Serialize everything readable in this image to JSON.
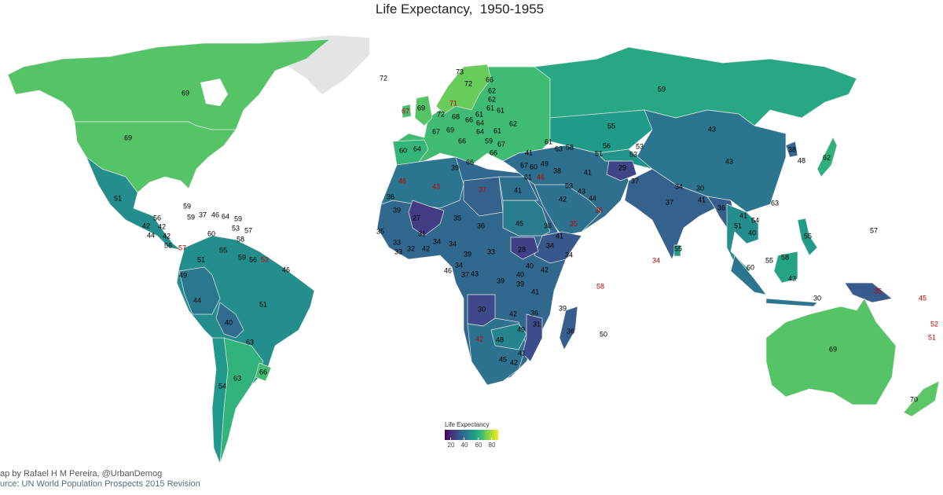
{
  "title": "Life Expectancy,  1950-1955",
  "legend": {
    "title": "Life Expectancy",
    "ticks": [
      "20",
      "40",
      "60",
      "80"
    ],
    "palette": [
      "#440154",
      "#482878",
      "#3e4989",
      "#31688e",
      "#26828e",
      "#1f9e89",
      "#35b779",
      "#6ece58",
      "#b5de2b",
      "#fde725"
    ],
    "range": [
      13,
      90
    ]
  },
  "credits": {
    "line1": "ap by Rafael H M Pereira, @UrbanDemog",
    "line2": "urce: UN World Population Prospects 2015 Revision"
  },
  "region_values": [
    69,
    69,
    51,
    51,
    44,
    40,
    63,
    54,
    66,
    66,
    72,
    69,
    67,
    64,
    59,
    55,
    43,
    53,
    41,
    29,
    42,
    37,
    36,
    51,
    38,
    62,
    55,
    43,
    58,
    43,
    35,
    55,
    69,
    70,
    39,
    43,
    27,
    45,
    41,
    37,
    34,
    28,
    30,
    42,
    48,
    31,
    36
  ],
  "labels": [
    69,
    69,
    72,
    51,
    59,
    59,
    37,
    46,
    64,
    59,
    56,
    42,
    42,
    44,
    42,
    56,
    57,
    60,
    53,
    57,
    58,
    55,
    51,
    59,
    56,
    53,
    46,
    49,
    44,
    51,
    40,
    63,
    66,
    54,
    63,
    73,
    72,
    66,
    71,
    62,
    62,
    61,
    69,
    67,
    72,
    68,
    61,
    61,
    62,
    67,
    69,
    66,
    64,
    64,
    61,
    60,
    64,
    66,
    59,
    67,
    66,
    66,
    39,
    41,
    61,
    63,
    58,
    59,
    55,
    43,
    43,
    56,
    53,
    51,
    53,
    29,
    37,
    41,
    38,
    49,
    67,
    60,
    61,
    46,
    42,
    53,
    43,
    44,
    36,
    35,
    37,
    34,
    30,
    41,
    36,
    41,
    54,
    51,
    40,
    63,
    38,
    48,
    62,
    55,
    55,
    34,
    60,
    55,
    58,
    43,
    30,
    35,
    57,
    45,
    52,
    51,
    69,
    70,
    46,
    43,
    37,
    41,
    36,
    39,
    27,
    35,
    36,
    45,
    36,
    41,
    34,
    28,
    33,
    39,
    34,
    31,
    32,
    42,
    34,
    35,
    33,
    33,
    34,
    46,
    34,
    37,
    43,
    39,
    40,
    42,
    40,
    39,
    41,
    39,
    30,
    42,
    36,
    31,
    49,
    48,
    42,
    36,
    41,
    45,
    42,
    58,
    50
  ]
}
